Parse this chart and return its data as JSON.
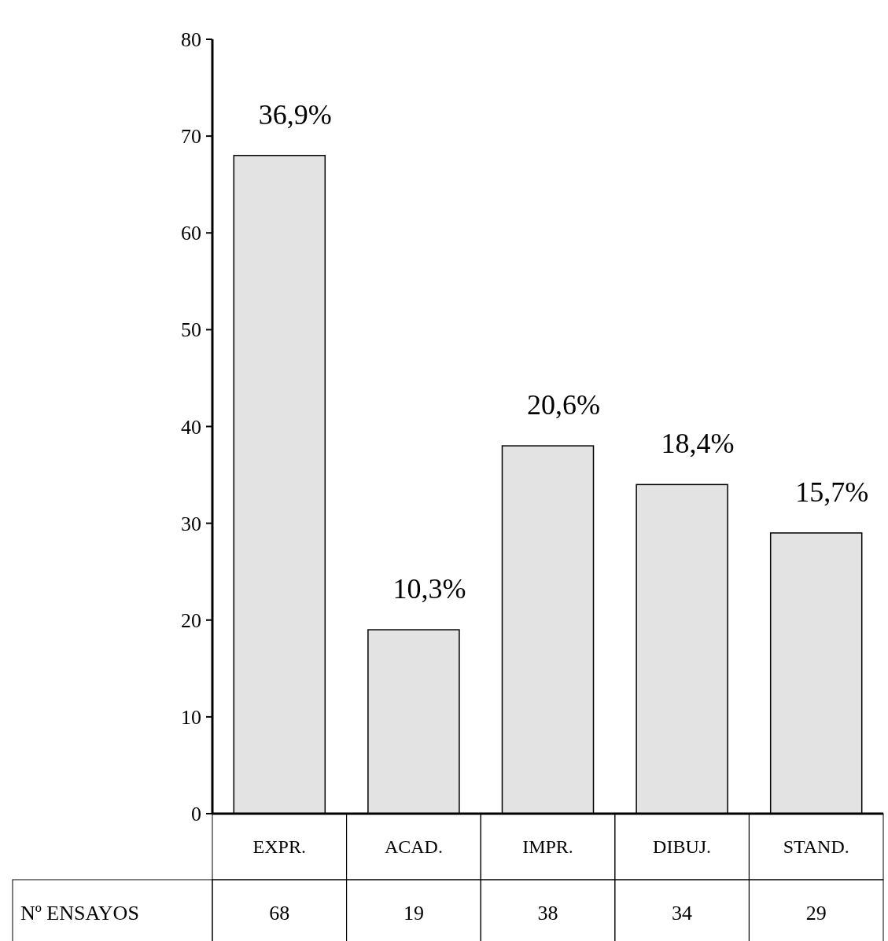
{
  "chart_data": {
    "type": "bar",
    "categories": [
      "EXPR.",
      "ACAD.",
      "IMPR.",
      "DIBUJ.",
      "STAND."
    ],
    "series": [
      {
        "name": "Nº ENSAYOS",
        "color": "#e3e3e3",
        "values": [
          68,
          19,
          38,
          34,
          29
        ]
      }
    ],
    "ylim": [
      0,
      80
    ],
    "yticks": [
      0,
      10,
      20,
      30,
      40,
      50,
      60,
      70,
      80
    ],
    "grid": false,
    "legend": false,
    "data_labels": true,
    "annotations": [
      {
        "text": "36,9%",
        "x": "EXPR.",
        "y": 68
      },
      {
        "text": "10,3%",
        "x": "ACAD.",
        "y": 19
      },
      {
        "text": "20,6%",
        "x": "IMPR.",
        "y": 38
      },
      {
        "text": "18,4%",
        "x": "DIBUJ.",
        "y": 34
      },
      {
        "text": "15,7%",
        "x": "STAND.",
        "y": 29
      }
    ]
  }
}
